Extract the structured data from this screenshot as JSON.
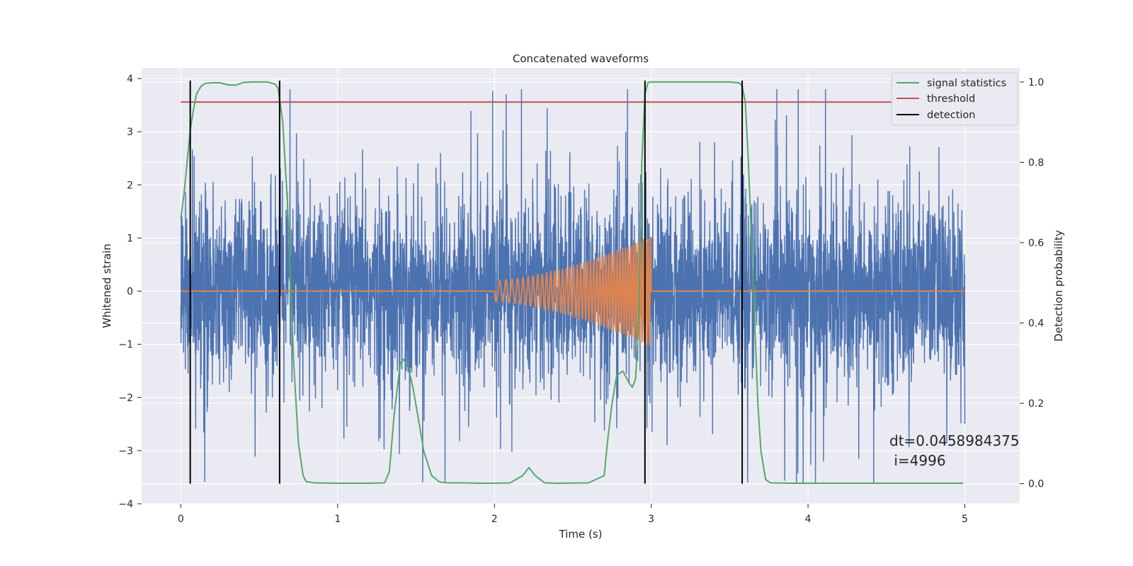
{
  "chart_data": {
    "type": "line",
    "title": "Concatenated waveforms",
    "xlabel": "Time (s)",
    "ylabel": "Whitened strain",
    "ylabel_right": "Detection probability",
    "xlim": [
      -0.25,
      5.35
    ],
    "ylim": [
      -4.0,
      4.2
    ],
    "ylim_right": [
      -0.05,
      1.035
    ],
    "x_ticks": [
      0,
      1,
      2,
      3,
      4,
      5
    ],
    "x_tick_labels": [
      "0",
      "1",
      "2",
      "3",
      "4",
      "5"
    ],
    "y_ticks": [
      4,
      3,
      2,
      1,
      0,
      -1,
      -2,
      -3,
      -4
    ],
    "y_tick_labels": [
      "4",
      "3",
      "2",
      "1",
      "0",
      "−1",
      "−2",
      "−3",
      "−4"
    ],
    "y_right_ticks": [
      1.0,
      0.8,
      0.6,
      0.4,
      0.2,
      0.0
    ],
    "y_right_tick_labels": [
      "1.0",
      "0.8",
      "0.6",
      "0.4",
      "0.2",
      "0.0"
    ],
    "grid": true,
    "legend_position": "top-right",
    "legend": [
      {
        "label": "signal statistics",
        "color": "#55a868"
      },
      {
        "label": "threshold",
        "color": "#c44e52"
      },
      {
        "label": "detection",
        "color": "#000000"
      }
    ],
    "series": [
      {
        "role": "strain",
        "color": "#4c72b0",
        "axis": "left",
        "x_range": [
          0,
          5
        ],
        "amplitude_envelope": [
          -3.6,
          3.8
        ]
      },
      {
        "role": "injected-signal",
        "color": "#dd8452",
        "axis": "left",
        "x_range": [
          0,
          5
        ],
        "chirp_x_range": [
          2.0,
          3.0
        ],
        "chirp_amplitude_range": [
          0.2,
          1.05
        ]
      },
      {
        "role": "signal statistics",
        "color": "#55a868",
        "axis": "right",
        "x": [
          0.0,
          0.02,
          0.04,
          0.06,
          0.08,
          0.1,
          0.13,
          0.16,
          0.2,
          0.25,
          0.3,
          0.35,
          0.4,
          0.45,
          0.5,
          0.55,
          0.6,
          0.62,
          0.65,
          0.68,
          0.7,
          0.72,
          0.75,
          0.78,
          0.8,
          0.85,
          1.0,
          1.2,
          1.3,
          1.33,
          1.36,
          1.4,
          1.42,
          1.45,
          1.48,
          1.52,
          1.55,
          1.6,
          1.65,
          1.7,
          1.8,
          1.9,
          2.0,
          2.1,
          2.18,
          2.22,
          2.26,
          2.32,
          2.4,
          2.6,
          2.7,
          2.72,
          2.75,
          2.78,
          2.82,
          2.86,
          2.88,
          2.9,
          2.92,
          2.94,
          2.96,
          2.98,
          3.0,
          3.1,
          3.3,
          3.5,
          3.56,
          3.58,
          3.6,
          3.62,
          3.64,
          3.66,
          3.68,
          3.7,
          3.73,
          3.76,
          3.9,
          4.5,
          4.99
        ],
        "y": [
          0.66,
          0.72,
          0.8,
          0.88,
          0.93,
          0.97,
          0.99,
          0.997,
          0.998,
          0.998,
          0.993,
          0.992,
          0.999,
          1.0,
          1.0,
          1.0,
          0.995,
          0.985,
          0.9,
          0.7,
          0.5,
          0.3,
          0.1,
          0.02,
          0.005,
          0.002,
          0.001,
          0.001,
          0.002,
          0.03,
          0.17,
          0.3,
          0.31,
          0.29,
          0.24,
          0.15,
          0.08,
          0.02,
          0.004,
          0.002,
          0.002,
          0.001,
          0.001,
          0.002,
          0.02,
          0.04,
          0.02,
          0.002,
          0.001,
          0.002,
          0.02,
          0.1,
          0.2,
          0.27,
          0.28,
          0.25,
          0.24,
          0.26,
          0.4,
          0.8,
          0.97,
          0.999,
          1.0,
          1.0,
          1.0,
          1.0,
          0.998,
          0.99,
          0.95,
          0.8,
          0.6,
          0.4,
          0.2,
          0.08,
          0.01,
          0.002,
          0.001,
          0.001,
          0.001
        ]
      },
      {
        "role": "threshold",
        "color": "#c44e52",
        "axis": "right",
        "x": [
          0,
          5
        ],
        "y": [
          0.95,
          0.95
        ]
      }
    ],
    "detections": [
      {
        "x": 0.06
      },
      {
        "x": 0.63
      },
      {
        "x": 2.96
      },
      {
        "x": 3.58
      }
    ],
    "annotation": {
      "line1": "dt=0.0458984375",
      "line2": " i=4996"
    }
  }
}
